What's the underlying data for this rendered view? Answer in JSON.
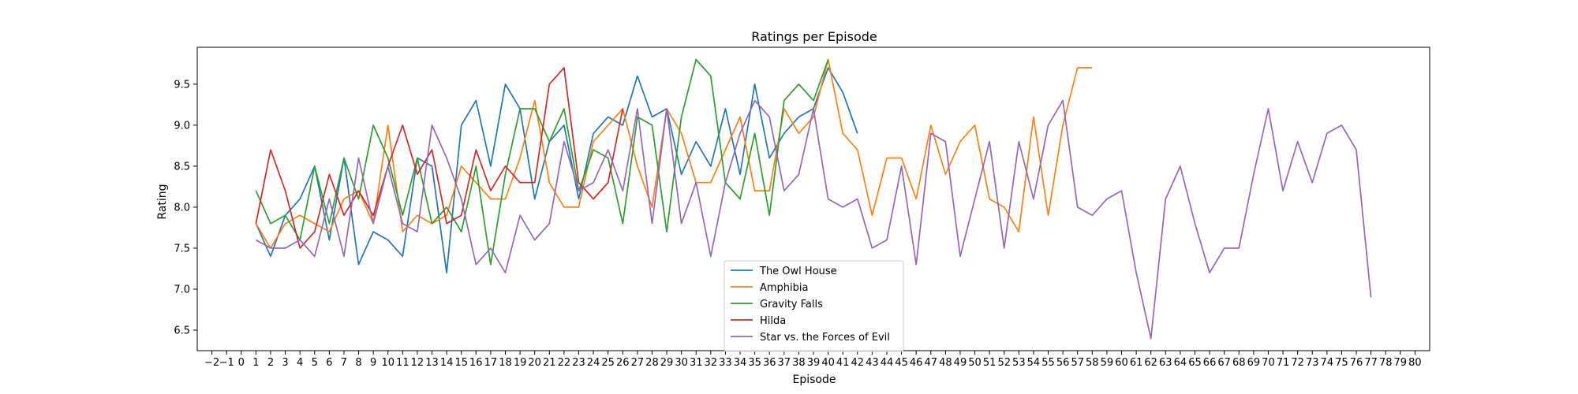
{
  "chart_data": {
    "type": "line",
    "title": "Ratings per Episode",
    "xlabel": "Episode",
    "ylabel": "Rating",
    "xlim": [
      -3,
      81
    ],
    "ylim": [
      6.25,
      9.95
    ],
    "xticks": [
      -2,
      -1,
      0,
      1,
      2,
      3,
      4,
      5,
      6,
      7,
      8,
      9,
      10,
      11,
      12,
      13,
      14,
      15,
      16,
      17,
      18,
      19,
      20,
      21,
      22,
      23,
      24,
      25,
      26,
      27,
      28,
      29,
      30,
      31,
      32,
      33,
      34,
      35,
      36,
      37,
      38,
      39,
      40,
      41,
      42,
      43,
      44,
      45,
      46,
      47,
      48,
      49,
      50,
      51,
      52,
      53,
      54,
      55,
      56,
      57,
      58,
      59,
      60,
      61,
      62,
      63,
      64,
      65,
      66,
      67,
      68,
      69,
      70,
      71,
      72,
      73,
      74,
      75,
      76,
      77,
      78,
      79,
      80
    ],
    "yticks": [
      "6.5",
      "7.0",
      "7.5",
      "8.0",
      "8.5",
      "9.0",
      "9.5"
    ],
    "grid": false,
    "legend_position": "lower center",
    "series": [
      {
        "name": "The Owl House",
        "color": "#1f77b4",
        "x": [
          1,
          2,
          3,
          4,
          5,
          6,
          7,
          8,
          9,
          10,
          11,
          12,
          13,
          14,
          15,
          16,
          17,
          18,
          19,
          20,
          21,
          22,
          23,
          24,
          25,
          26,
          27,
          28,
          29,
          30,
          31,
          32,
          33,
          34,
          35,
          36,
          37,
          38,
          39,
          40,
          41,
          42
        ],
        "y": [
          7.8,
          7.4,
          7.9,
          8.1,
          8.5,
          7.6,
          8.6,
          7.3,
          7.7,
          7.6,
          7.4,
          8.6,
          8.5,
          7.2,
          9.0,
          9.3,
          8.5,
          9.5,
          9.2,
          8.1,
          8.8,
          9.0,
          8.1,
          8.9,
          9.1,
          9.0,
          9.6,
          9.1,
          9.2,
          8.4,
          8.8,
          8.5,
          9.2,
          8.4,
          9.5,
          8.6,
          8.9,
          9.1,
          9.2,
          9.7,
          9.4,
          8.9
        ]
      },
      {
        "name": "Amphibia",
        "color": "#ff7f0e",
        "x": [
          1,
          2,
          3,
          4,
          5,
          6,
          7,
          8,
          9,
          10,
          11,
          12,
          13,
          14,
          15,
          16,
          17,
          18,
          19,
          20,
          21,
          22,
          23,
          24,
          25,
          26,
          27,
          28,
          29,
          30,
          31,
          32,
          33,
          34,
          35,
          36,
          37,
          38,
          39,
          40,
          41,
          42,
          43,
          44,
          45,
          46,
          47,
          48,
          49,
          50,
          51,
          52,
          53,
          54,
          55,
          56,
          57,
          58
        ],
        "y": [
          7.8,
          7.5,
          7.8,
          7.9,
          7.8,
          7.7,
          8.1,
          8.2,
          7.8,
          9.0,
          7.7,
          7.9,
          7.8,
          7.9,
          8.5,
          8.3,
          8.1,
          8.1,
          8.6,
          9.3,
          8.3,
          8.0,
          8.0,
          8.8,
          9.0,
          9.2,
          8.5,
          8.0,
          9.2,
          8.9,
          8.3,
          8.3,
          8.7,
          9.1,
          8.2,
          8.2,
          9.2,
          8.9,
          9.1,
          9.8,
          8.9,
          8.7,
          7.9,
          8.6,
          8.6,
          8.1,
          9.0,
          8.4,
          8.8,
          9.0,
          8.1,
          8.0,
          7.7,
          9.1,
          7.9,
          9.0,
          9.7,
          9.7
        ]
      },
      {
        "name": "Gravity Falls",
        "color": "#2ca02c",
        "x": [
          1,
          2,
          3,
          4,
          5,
          6,
          7,
          8,
          9,
          10,
          11,
          12,
          13,
          14,
          15,
          16,
          17,
          18,
          19,
          20,
          21,
          22,
          23,
          24,
          25,
          26,
          27,
          28,
          29,
          30,
          31,
          32,
          33,
          34,
          35,
          36,
          37,
          38,
          39,
          40
        ],
        "y": [
          8.2,
          7.8,
          7.9,
          7.6,
          8.5,
          7.8,
          8.6,
          8.1,
          9.0,
          8.6,
          7.9,
          8.6,
          7.8,
          8.0,
          7.7,
          8.5,
          7.3,
          8.4,
          9.2,
          9.2,
          8.8,
          9.2,
          8.2,
          8.7,
          8.6,
          7.8,
          9.1,
          9.0,
          7.7,
          9.1,
          9.8,
          9.6,
          8.3,
          8.1,
          8.9,
          7.9,
          9.3,
          9.5,
          9.3,
          9.8
        ]
      },
      {
        "name": "Hilda",
        "color": "#d62728",
        "x": [
          1,
          2,
          3,
          4,
          5,
          6,
          7,
          8,
          9,
          10,
          11,
          12,
          13,
          14,
          15,
          16,
          17,
          18,
          19,
          20,
          21,
          22,
          23,
          24,
          25,
          26
        ],
        "y": [
          7.8,
          8.7,
          8.2,
          7.5,
          7.7,
          8.4,
          7.9,
          8.2,
          7.9,
          8.5,
          9.0,
          8.4,
          8.7,
          7.8,
          7.9,
          8.7,
          8.2,
          8.5,
          8.3,
          8.3,
          9.5,
          9.7,
          8.3,
          8.1,
          8.3,
          9.2
        ]
      },
      {
        "name": "Star vs. the Forces of Evil",
        "color": "#9467bd",
        "x": [
          1,
          2,
          3,
          4,
          5,
          6,
          7,
          8,
          9,
          10,
          11,
          12,
          13,
          14,
          15,
          16,
          17,
          18,
          19,
          20,
          21,
          22,
          23,
          24,
          25,
          26,
          27,
          28,
          29,
          30,
          31,
          32,
          33,
          34,
          35,
          36,
          37,
          38,
          39,
          40,
          41,
          42,
          43,
          44,
          45,
          46,
          47,
          48,
          49,
          50,
          51,
          52,
          53,
          54,
          55,
          56,
          57,
          58,
          59,
          60,
          61,
          62,
          63,
          64,
          65,
          66,
          67,
          68,
          69,
          70,
          71,
          72,
          73,
          74,
          75,
          76,
          77
        ],
        "y": [
          7.6,
          7.5,
          7.5,
          7.6,
          7.4,
          8.1,
          7.4,
          8.6,
          7.8,
          8.5,
          7.8,
          7.7,
          9.0,
          8.6,
          8.1,
          7.3,
          7.5,
          7.2,
          7.9,
          7.6,
          7.8,
          8.8,
          8.2,
          8.3,
          8.7,
          8.2,
          9.2,
          7.8,
          9.2,
          7.8,
          8.3,
          7.4,
          8.3,
          8.9,
          9.3,
          9.1,
          8.2,
          8.4,
          9.2,
          8.1,
          8.0,
          8.1,
          7.5,
          7.6,
          8.5,
          7.3,
          8.9,
          8.8,
          7.4,
          8.1,
          8.8,
          7.5,
          8.8,
          8.1,
          9.0,
          9.3,
          8.0,
          7.9,
          8.1,
          8.2,
          7.2,
          6.4,
          8.1,
          8.5,
          7.8,
          7.2,
          7.5,
          7.5,
          8.4,
          9.2,
          8.2,
          8.8,
          8.3,
          8.9,
          9.0,
          8.7,
          6.9
        ]
      }
    ]
  }
}
